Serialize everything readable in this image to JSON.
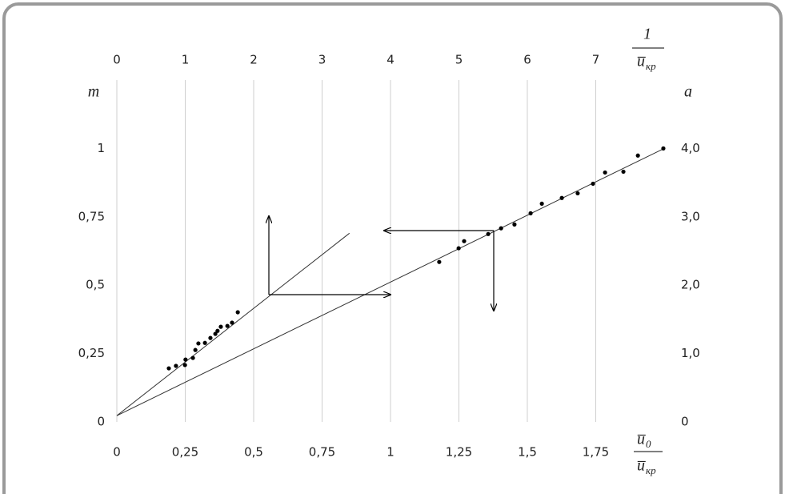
{
  "chart_data": {
    "type": "scatter",
    "x_label": {
      "numerator": [
        "u̅",
        "0"
      ],
      "denominator": [
        "u̅",
        "кр"
      ]
    },
    "x2_label": {
      "numerator": "1",
      "denominator": [
        "u̅",
        "кр"
      ]
    },
    "y_label": "m",
    "y2_label": "a",
    "xlim": [
      0,
      2
    ],
    "xticks": [
      0,
      {
        "value": 0.25,
        "label": "0,25"
      },
      {
        "value": 0.5,
        "label": "0,5"
      },
      {
        "value": 0.75,
        "label": "0,75"
      },
      1,
      {
        "value": 1.25,
        "label": "1,25"
      },
      {
        "value": 1.5,
        "label": "1,5"
      },
      {
        "value": 1.75,
        "label": "1,75"
      }
    ],
    "x2lim": [
      0,
      8
    ],
    "x2ticks": [
      0,
      1,
      2,
      3,
      4,
      5,
      6,
      7
    ],
    "ylim": [
      0,
      1.25
    ],
    "yticks": [
      0,
      {
        "value": 0.25,
        "label": "0,25"
      },
      {
        "value": 0.5,
        "label": "0,5"
      },
      {
        "value": 0.75,
        "label": "0,75"
      },
      1
    ],
    "y2lim": [
      0,
      5
    ],
    "y2ticks": [
      0,
      {
        "value": 1,
        "label": "1,0"
      },
      {
        "value": 2,
        "label": "2,0"
      },
      {
        "value": 3,
        "label": "3,0"
      },
      {
        "value": 4,
        "label": "4,0"
      }
    ],
    "grid": true,
    "color": "#000000",
    "series": [
      {
        "x": [
          0.19,
          0.216,
          0.249,
          0.251,
          0.278,
          0.287,
          0.298,
          0.322,
          0.342,
          0.36,
          0.368,
          0.38,
          0.404,
          0.421,
          0.442
        ],
        "values": [
          0.196,
          0.205,
          0.208,
          0.228,
          0.234,
          0.263,
          0.287,
          0.289,
          0.307,
          0.322,
          0.333,
          0.348,
          0.351,
          0.363,
          0.401
        ]
      },
      {
        "x": [
          1.178,
          1.249,
          1.269,
          1.357,
          1.404,
          1.453,
          1.512,
          1.553,
          1.626,
          1.684,
          1.74,
          1.784,
          1.851,
          1.904,
          1.997
        ],
        "values": [
          0.585,
          0.635,
          0.661,
          0.687,
          0.708,
          0.722,
          0.763,
          0.798,
          0.819,
          0.836,
          0.871,
          0.912,
          0.915,
          0.974,
          1.0
        ]
      }
    ],
    "fit_lines": [
      {
        "x": [
          0,
          0.85
        ],
        "values": [
          0.023,
          0.69
        ]
      },
      {
        "x": [
          0,
          2
        ],
        "values": [
          0.023,
          1.0
        ]
      }
    ]
  }
}
